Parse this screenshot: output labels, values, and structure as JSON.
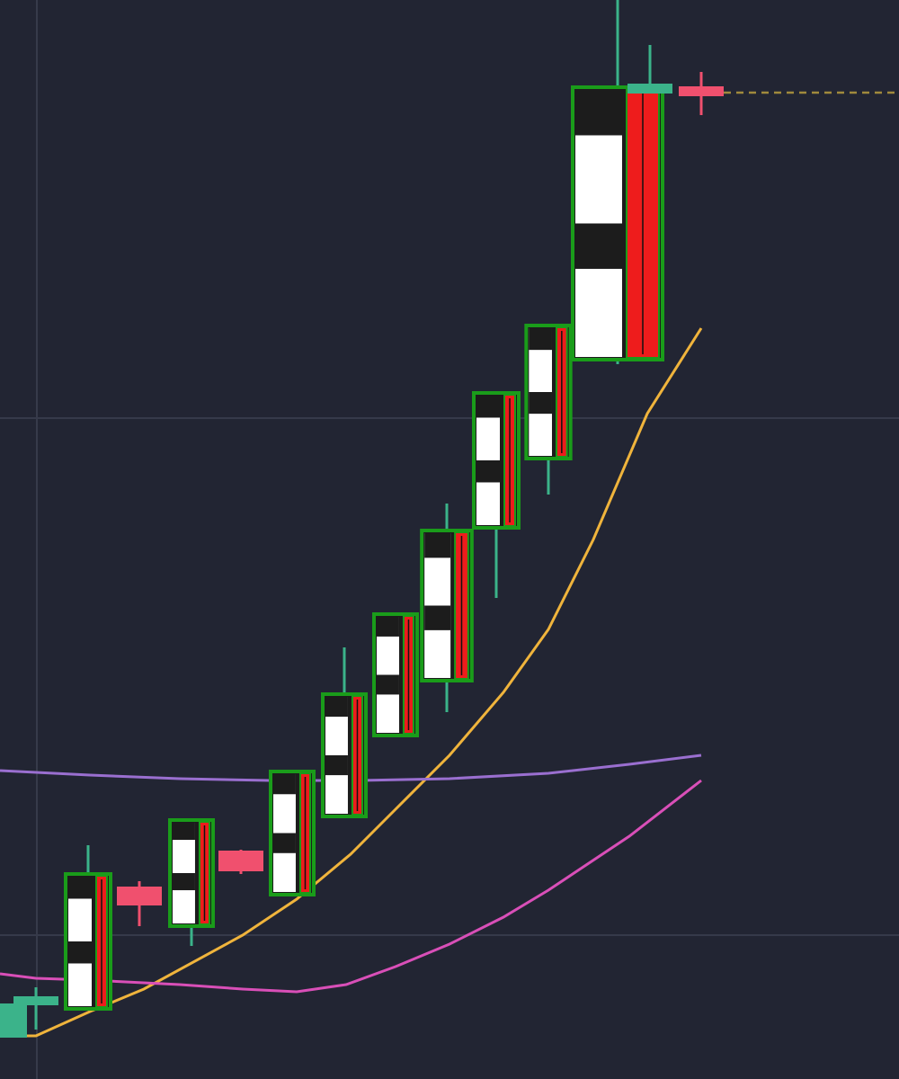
{
  "chart_data": {
    "type": "candlestick",
    "background": "#222533",
    "up_color": "#3bb38a",
    "down_color": "#f0506e",
    "xlim": [
      0,
      1000
    ],
    "ylim": [
      0,
      1200
    ],
    "yticks": [
      160,
      735
    ],
    "grid": true,
    "x": [
      5,
      40,
      98,
      155,
      213,
      268,
      325,
      383,
      440,
      497,
      552,
      610,
      687,
      723,
      780
    ],
    "open": [
      50,
      88,
      78,
      210,
      170,
      250,
      205,
      292,
      382,
      443,
      613,
      690,
      800,
      1100,
      1100
    ],
    "high": [
      80,
      102,
      260,
      220,
      290,
      255,
      342,
      480,
      517,
      640,
      763,
      838,
      1200,
      1150,
      1120
    ],
    "low": [
      50,
      55,
      78,
      170,
      148,
      228,
      205,
      292,
      382,
      408,
      535,
      650,
      795,
      1100,
      1072
    ],
    "close": [
      80,
      88,
      228,
      197,
      288,
      235,
      342,
      428,
      517,
      610,
      763,
      838,
      1103,
      1103,
      1097
    ],
    "last_price": 1097,
    "lines": [
      {
        "color": "#f0b43c",
        "x": [
          0,
          40,
          100,
          160,
          270,
          330,
          390,
          440,
          500,
          560,
          610,
          660,
          720,
          780
        ],
        "values": [
          48,
          48,
          75,
          100,
          160,
          200,
          250,
          300,
          360,
          430,
          500,
          600,
          740,
          835
        ]
      },
      {
        "color": "#9a6fd0",
        "x": [
          0,
          100,
          200,
          300,
          400,
          500,
          610,
          700,
          780
        ],
        "values": [
          343,
          338,
          334,
          332,
          332,
          334,
          340,
          350,
          360
        ]
      },
      {
        "color": "#d94fb8",
        "x": [
          0,
          40,
          100,
          200,
          270,
          330,
          385,
          440,
          500,
          560,
          610,
          700,
          780
        ],
        "values": [
          117,
          112,
          110,
          105,
          100,
          97,
          105,
          125,
          150,
          180,
          210,
          270,
          332
        ]
      }
    ]
  }
}
